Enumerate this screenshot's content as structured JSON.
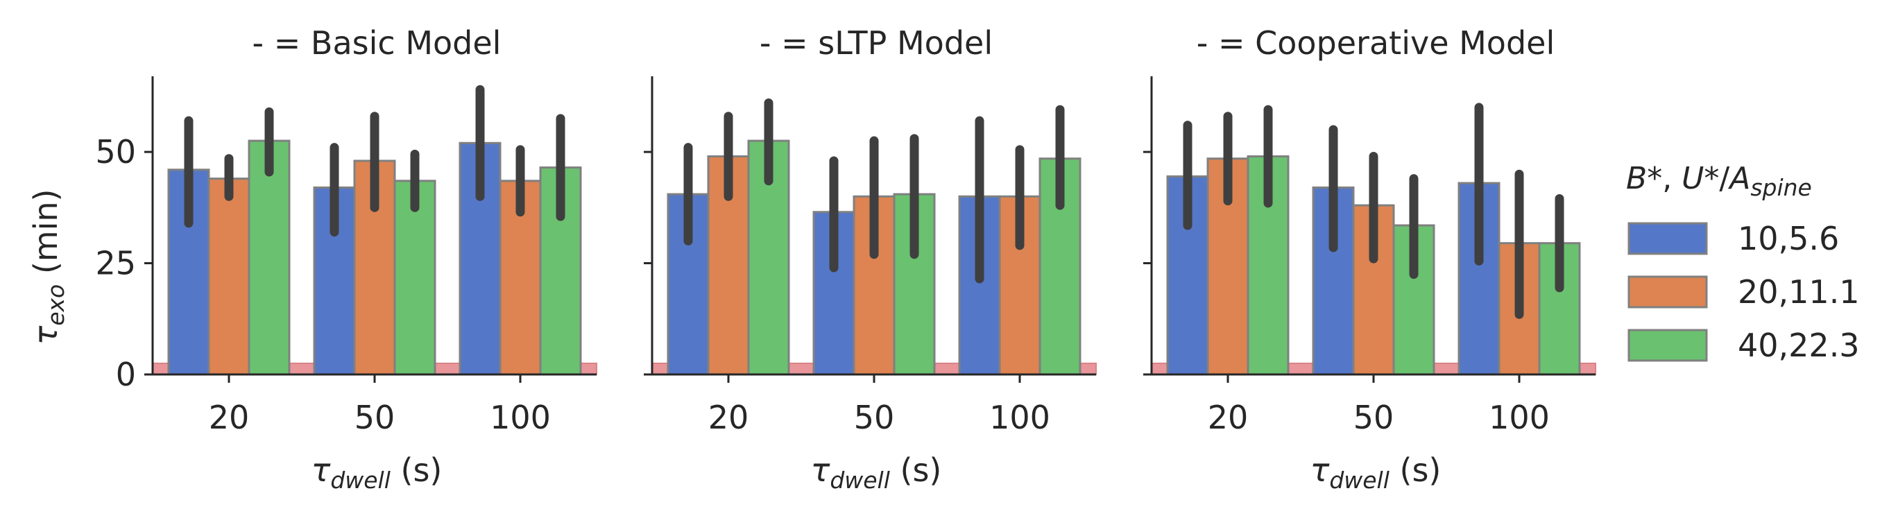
{
  "chart_data": [
    {
      "type": "bar",
      "title": "- = Basic Model",
      "xlabel_main": "τ",
      "xlabel_sub": "dwell",
      "xlabel_unit": " (s)",
      "ylabel_main": "τ",
      "ylabel_sub": "exo",
      "ylabel_unit": " (min)",
      "categories": [
        "20",
        "50",
        "100"
      ],
      "ylim": [
        0,
        67
      ],
      "yticks": [
        0,
        25,
        50
      ],
      "reference_band": [
        0,
        2.5
      ],
      "series": [
        {
          "name": "10,5.6",
          "values": [
            46,
            42,
            52
          ],
          "err_low": [
            34,
            32,
            40
          ],
          "err_high": [
            57,
            51,
            64
          ]
        },
        {
          "name": "20,11.1",
          "values": [
            44,
            48,
            43.5
          ],
          "err_low": [
            40,
            37.5,
            36.5
          ],
          "err_high": [
            48.5,
            58,
            50.5
          ]
        },
        {
          "name": "40,22.3",
          "values": [
            52.5,
            43.5,
            46.5
          ],
          "err_low": [
            45.5,
            37.5,
            35.5
          ],
          "err_high": [
            59,
            49.5,
            57.5
          ]
        }
      ]
    },
    {
      "type": "bar",
      "title": "- = sLTP Model",
      "xlabel_main": "τ",
      "xlabel_sub": "dwell",
      "xlabel_unit": " (s)",
      "categories": [
        "20",
        "50",
        "100"
      ],
      "ylim": [
        0,
        67
      ],
      "yticks": [
        0,
        25,
        50
      ],
      "reference_band": [
        0,
        2.5
      ],
      "series": [
        {
          "name": "10,5.6",
          "values": [
            40.5,
            36.5,
            40
          ],
          "err_low": [
            30,
            24,
            21.5
          ],
          "err_high": [
            51,
            48,
            57
          ]
        },
        {
          "name": "20,11.1",
          "values": [
            49,
            40,
            40
          ],
          "err_low": [
            40,
            27,
            29
          ],
          "err_high": [
            58,
            52.5,
            50.5
          ]
        },
        {
          "name": "40,22.3",
          "values": [
            52.5,
            40.5,
            48.5
          ],
          "err_low": [
            43.5,
            27,
            38
          ],
          "err_high": [
            61,
            53,
            59.5
          ]
        }
      ]
    },
    {
      "type": "bar",
      "title": "- = Cooperative Model",
      "xlabel_main": "τ",
      "xlabel_sub": "dwell",
      "xlabel_unit": " (s)",
      "categories": [
        "20",
        "50",
        "100"
      ],
      "ylim": [
        0,
        67
      ],
      "yticks": [
        0,
        25,
        50
      ],
      "reference_band": [
        0,
        2.5
      ],
      "series": [
        {
          "name": "10,5.6",
          "values": [
            44.5,
            42,
            43
          ],
          "err_low": [
            33.5,
            28.5,
            25.5
          ],
          "err_high": [
            56,
            55,
            60
          ]
        },
        {
          "name": "20,11.1",
          "values": [
            48.5,
            38,
            29.5
          ],
          "err_low": [
            39,
            26,
            13.5
          ],
          "err_high": [
            58,
            49,
            45
          ]
        },
        {
          "name": "40,22.3",
          "values": [
            49,
            33.5,
            29.5
          ],
          "err_low": [
            38.5,
            22.5,
            19.5
          ],
          "err_high": [
            59.5,
            44,
            39.5
          ]
        }
      ]
    }
  ],
  "legend": {
    "title_B": "B",
    "title_sep1": "*, ",
    "title_U": "U",
    "title_sep2": "*/",
    "title_A": "A",
    "title_sub": "spine",
    "entries": [
      "10,5.6",
      "20,11.1",
      "40,22.3"
    ],
    "placement": "right"
  },
  "colors": {
    "series": [
      "#5577c7",
      "#dd8452",
      "#6ac16f"
    ],
    "bar_edge": "#808080",
    "error_bar": "#3f3f3f",
    "band": "#e8969a",
    "axis": "#262626"
  }
}
